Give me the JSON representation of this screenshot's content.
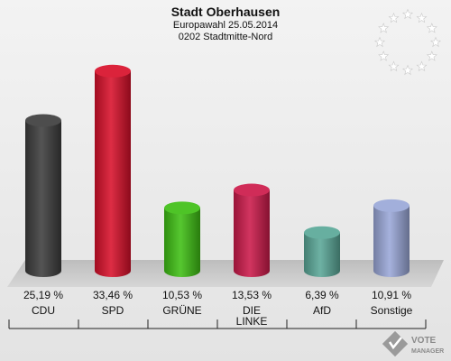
{
  "header": {
    "title": "Stadt Oberhausen",
    "subtitle": "Europawahl 25.05.2014",
    "district": "0202 Stadtmitte-Nord"
  },
  "branding": {
    "logo_text_line1": "VOTE",
    "logo_text_line2": "MANAGER"
  },
  "chart_data": {
    "type": "bar",
    "categories": [
      "CDU",
      "SPD",
      "GRÜNE",
      "DIE LINKE",
      "AfD",
      "Sonstige"
    ],
    "values": [
      25.19,
      33.46,
      10.53,
      13.53,
      6.39,
      10.91
    ],
    "value_labels": [
      "25,19 %",
      "33,46 %",
      "10,53 %",
      "13,53 %",
      "6,39 %",
      "10,91 %"
    ],
    "colors": [
      "#3d3d3d",
      "#d8102a",
      "#3fbf14",
      "#cc1a4a",
      "#5aa898",
      "#9aa8d8"
    ],
    "ylim": [
      0,
      36
    ],
    "grid": false
  }
}
